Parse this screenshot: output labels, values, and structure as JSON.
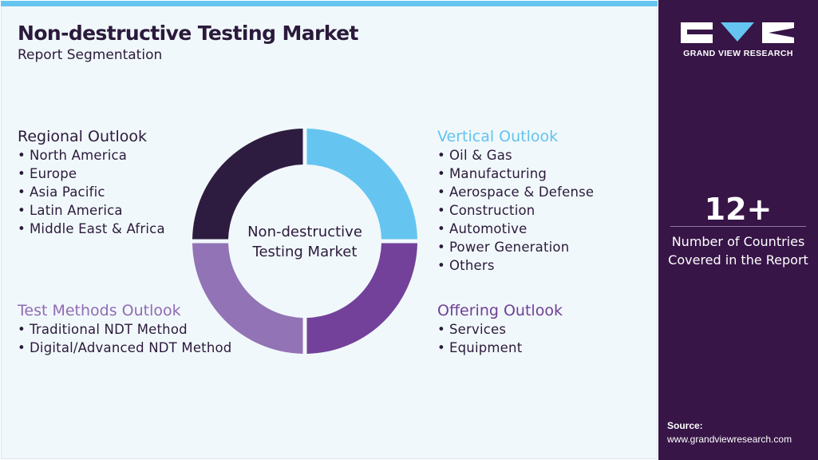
{
  "header": {
    "title": "Non-destructive Testing Market",
    "subtitle": "Report Segmentation"
  },
  "colors": {
    "accent_blue": "#66c5f0",
    "dark_purple": "#2e1c40",
    "mid_purple": "#73419a",
    "light_purple": "#9273b5",
    "side_panel": "#371547"
  },
  "segments": {
    "regional": {
      "heading": "Regional Outlook",
      "items": [
        "North America",
        "Europe",
        "Asia Pacific",
        "Latin America",
        "Middle East & Africa"
      ]
    },
    "vertical": {
      "heading": "Vertical Outlook",
      "items": [
        "Oil & Gas",
        "Manufacturing",
        "Aerospace & Defense",
        "Construction",
        "Automotive",
        "Power Generation",
        "Others"
      ]
    },
    "test_methods": {
      "heading": "Test Methods Outlook",
      "items": [
        "Traditional NDT Method",
        "Digital/Advanced NDT Method"
      ]
    },
    "offering": {
      "heading": "Offering Outlook",
      "items": [
        "Services",
        "Equipment"
      ]
    }
  },
  "donut": {
    "center_line1": "Non-destructive",
    "center_line2": "Testing Market",
    "quadrants": [
      {
        "name": "vertical",
        "color": "#66c5f0"
      },
      {
        "name": "offering",
        "color": "#73419a"
      },
      {
        "name": "test-methods",
        "color": "#9273b5"
      },
      {
        "name": "regional",
        "color": "#2e1c40"
      }
    ]
  },
  "sidebar": {
    "brand": "GRAND VIEW RESEARCH",
    "stat_value": "12+",
    "stat_label_line1": "Number of Countries",
    "stat_label_line2": "Covered in the Report",
    "source_label": "Source:",
    "source_url": "www.grandviewresearch.com"
  }
}
